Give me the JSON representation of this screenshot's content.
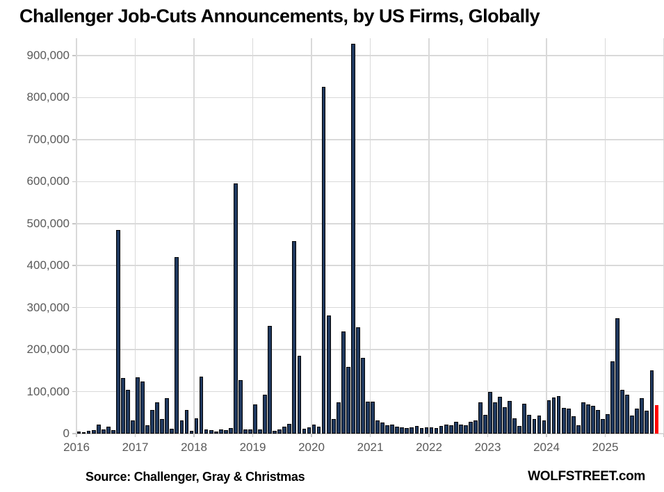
{
  "header": {
    "title": "Challenger Job-Cuts Announcements, by US Firms, Globally"
  },
  "footer": {
    "source": "Source: Challenger, Gray & Christmas",
    "watermark": "WOLFSTREET.com"
  },
  "chart_data": {
    "type": "bar",
    "title": "Challenger Job-Cuts Announcements, by US Firms, Globally",
    "xlabel": "",
    "ylabel": "",
    "x_unit": "month",
    "start_month": "2016-01",
    "end_month": "2025-11",
    "ylim": [
      0,
      941000
    ],
    "grid": true,
    "y_tick_labels": [
      "0",
      "100,000",
      "200,000",
      "300,000",
      "400,000",
      "500,000",
      "600,000",
      "700,000",
      "800,000",
      "900,000"
    ],
    "y_tick_values": [
      0,
      100000,
      200000,
      300000,
      400000,
      500000,
      600000,
      700000,
      800000,
      900000
    ],
    "x_tick_labels": [
      "2016",
      "2017",
      "2018",
      "2019",
      "2020",
      "2021",
      "2022",
      "2023",
      "2024",
      "2025"
    ],
    "series": [
      {
        "name": "Job-cut announcements",
        "values": [
          5000,
          4000,
          7000,
          9000,
          21000,
          10000,
          17000,
          9000,
          485000,
          132000,
          105000,
          31000,
          134000,
          124000,
          20000,
          56000,
          74000,
          34000,
          84000,
          11000,
          421000,
          31000,
          57000,
          7000,
          36000,
          136000,
          10000,
          8000,
          5000,
          10000,
          8000,
          13000,
          595000,
          127000,
          10000,
          10000,
          70000,
          10000,
          93000,
          257000,
          7000,
          10000,
          17000,
          23000,
          458000,
          186000,
          12000,
          15000,
          22000,
          17000,
          825000,
          281000,
          34000,
          74000,
          243000,
          158000,
          928000,
          253000,
          180000,
          76000,
          76000,
          31000,
          27000,
          20000,
          22000,
          16000,
          15000,
          13000,
          15000,
          19000,
          13000,
          15000,
          15000,
          13000,
          19000,
          21000,
          20000,
          28000,
          22000,
          20000,
          28000,
          32000,
          74000,
          45000,
          100000,
          74000,
          88000,
          63000,
          77000,
          37000,
          19000,
          71000,
          45000,
          34000,
          43000,
          32000,
          79000,
          86000,
          89000,
          62000,
          59000,
          42000,
          20000,
          74000,
          70000,
          66000,
          56000,
          34000,
          46000,
          172000,
          275000,
          104000,
          92000,
          43000,
          59000,
          84000,
          55000,
          151000,
          68000
        ]
      }
    ],
    "highlight_last_bar": true,
    "legend": null,
    "colors": {
      "bar": "#20395f",
      "bar_outline": "#000000",
      "last_bar": "#ff0000",
      "grid": "#d9d9d9",
      "axis_text": "#595959",
      "title_text": "#000000"
    }
  }
}
